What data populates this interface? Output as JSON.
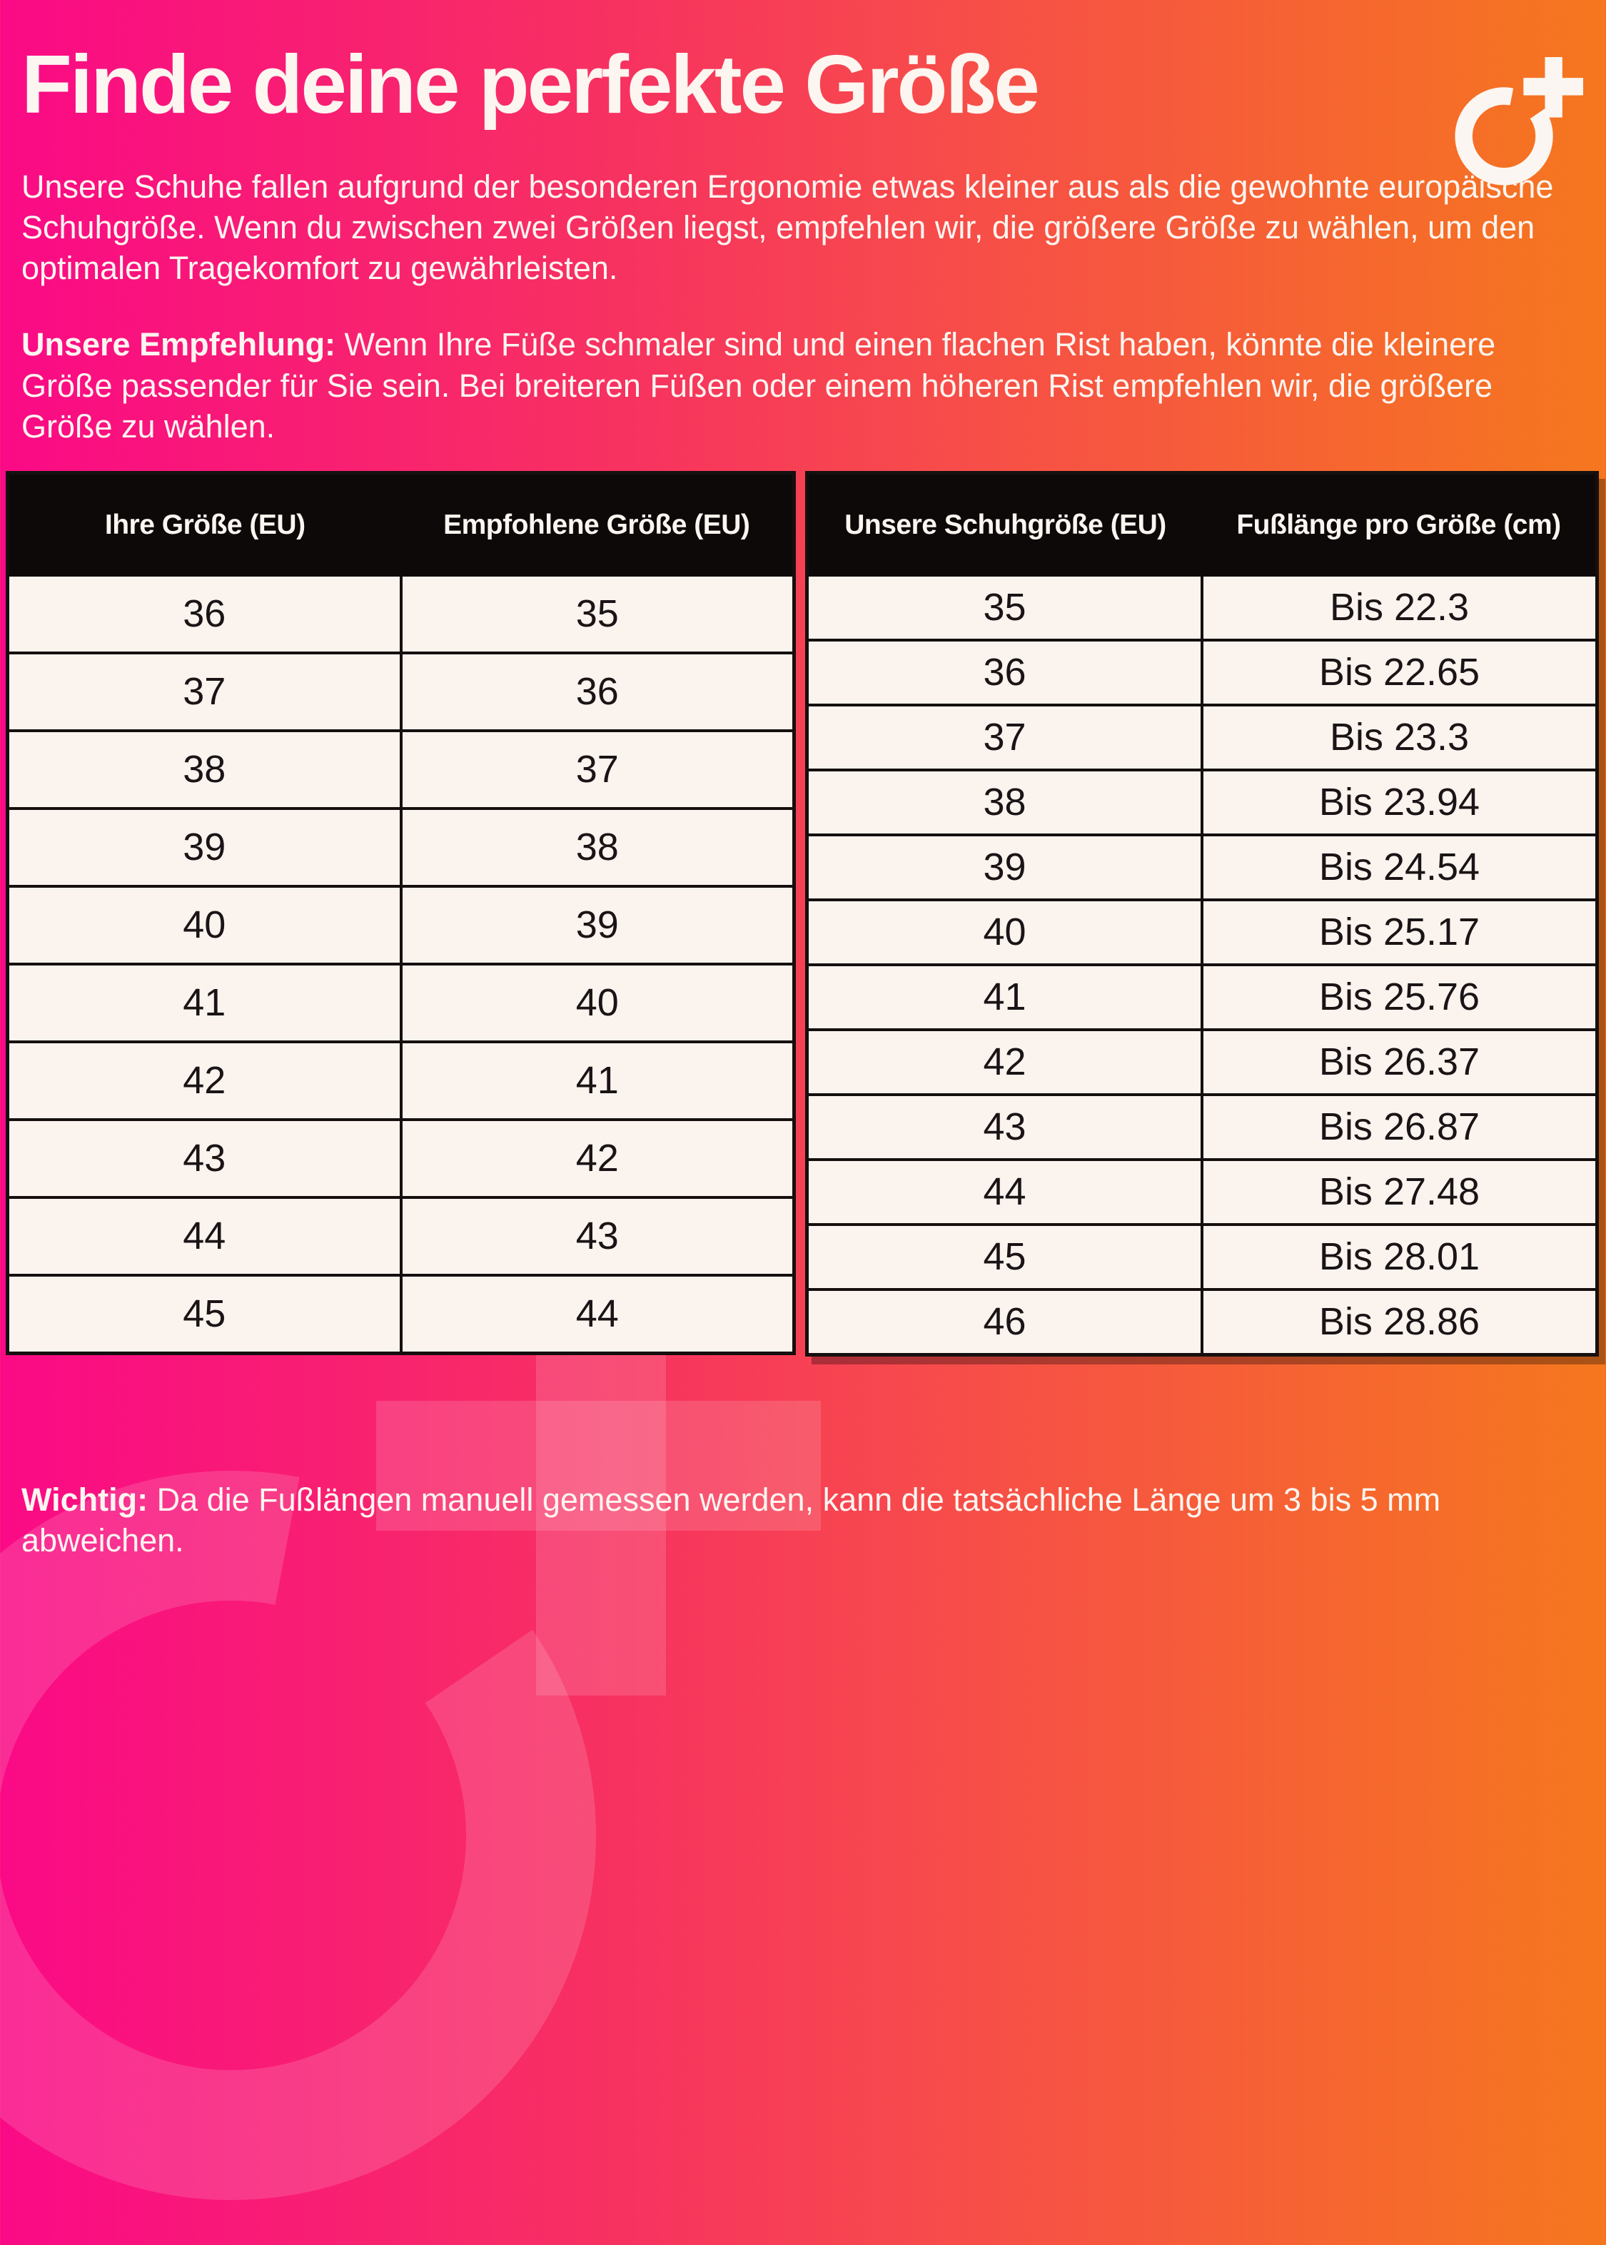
{
  "page": {
    "title": "Finde deine perfekte Größe",
    "intro": "Unsere Schuhe fallen aufgrund der besonderen Ergonomie etwas kleiner aus als die gewohnte europäische Schuhgröße. Wenn du zwischen zwei Größen liegst, empfehlen wir, die größere Größe zu wählen, um den optimalen Tragekomfort zu gewährleisten.",
    "recommendation_label": "Unsere Empfehlung:",
    "recommendation_text": " Wenn Ihre Füße schmaler sind und einen flachen Rist haben, könnte die kleinere Größe passender für Sie sein. Bei breiteren Füßen oder einem höheren Rist empfehlen wir, die größere Größe zu wählen.",
    "note_label": "Wichtig:",
    "note_text": " Da die Fußlängen manuell gemessen werden, kann die tatsächliche Länge um 3 bis 5 mm abweichen."
  },
  "logo": {
    "name": "O+ brand mark (ring with plus)"
  },
  "size_table": {
    "headers": [
      "Ihre Größe (EU)",
      "Empfohlene Größe (EU)"
    ],
    "rows": [
      [
        "36",
        "35"
      ],
      [
        "37",
        "36"
      ],
      [
        "38",
        "37"
      ],
      [
        "39",
        "38"
      ],
      [
        "40",
        "39"
      ],
      [
        "41",
        "40"
      ],
      [
        "42",
        "41"
      ],
      [
        "43",
        "42"
      ],
      [
        "44",
        "43"
      ],
      [
        "45",
        "44"
      ]
    ]
  },
  "length_table": {
    "headers": [
      "Unsere Schuhgröße (EU)",
      "Fußlänge pro Größe (cm)"
    ],
    "rows": [
      [
        "35",
        "Bis 22.3"
      ],
      [
        "36",
        "Bis 22.65"
      ],
      [
        "37",
        "Bis 23.3"
      ],
      [
        "38",
        "Bis 23.94"
      ],
      [
        "39",
        "Bis 24.54"
      ],
      [
        "40",
        "Bis 25.17"
      ],
      [
        "41",
        "Bis 25.76"
      ],
      [
        "42",
        "Bis 26.37"
      ],
      [
        "43",
        "Bis 26.87"
      ],
      [
        "44",
        "Bis 27.48"
      ],
      [
        "45",
        "Bis 28.01"
      ],
      [
        "46",
        "Bis 28.86"
      ]
    ]
  },
  "colors": {
    "grad-start": "#fa0a86",
    "grad-mid1": "#f7335f",
    "grad-mid2": "#f74b4b",
    "grad-end": "#f5771e",
    "header-bg": "#0d0909",
    "cell-bg": "#faf3ee",
    "border": "#15100f",
    "text-light": "#fcf5f0",
    "text-dark": "#1a1416"
  }
}
